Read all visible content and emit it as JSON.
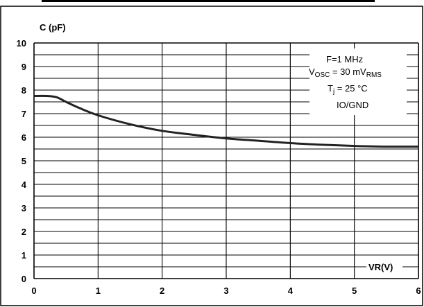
{
  "chart_data": {
    "type": "line",
    "ylabel": "C (pF)",
    "xlabel": "VR(V)",
    "xlim": [
      0,
      6
    ],
    "ylim": [
      0,
      10
    ],
    "x_ticks": [
      "0",
      "1",
      "2",
      "3",
      "4",
      "5",
      "6"
    ],
    "y_ticks": [
      "0",
      "1",
      "2",
      "3",
      "4",
      "5",
      "6",
      "7",
      "8",
      "9",
      "10"
    ],
    "grid": true,
    "legend_position": "top-right",
    "conditions": {
      "freq": "F=1 MHz",
      "vosc_base": "V",
      "vosc_sub": "OSC",
      "vosc_mid": " = 30 mV",
      "vosc_tail_sub": "RMS",
      "tj_base": "T",
      "tj_sub": "j",
      "tj_tail": " = 25 °C",
      "config": "IO/GND"
    },
    "series": [
      {
        "x": [
          0,
          0.2,
          0.35,
          0.5,
          0.7,
          1.0,
          1.5,
          2.0,
          2.5,
          3.0,
          3.5,
          4.0,
          4.5,
          5.0,
          5.5,
          6.0
        ],
        "y": [
          7.75,
          7.75,
          7.7,
          7.5,
          7.25,
          6.93,
          6.55,
          6.27,
          6.1,
          5.95,
          5.85,
          5.75,
          5.68,
          5.63,
          5.6,
          5.6
        ]
      }
    ]
  }
}
